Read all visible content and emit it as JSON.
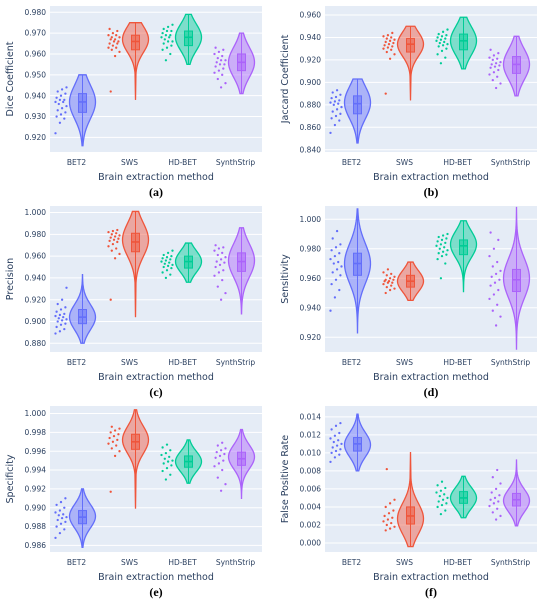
{
  "figure": {
    "colors": {
      "plot_bg": "#e5ecf6",
      "grid": "#ffffff",
      "text": "#2a3f5f"
    },
    "categories": [
      "BET2",
      "SWS",
      "HD-BET",
      "SynthStrip"
    ],
    "category_colors": {
      "BET2": "#636efa",
      "SWS": "#ef553b",
      "HD-BET": "#00cc96",
      "SynthStrip": "#ab63fa"
    }
  },
  "chart_data": [
    {
      "type": "violin",
      "panel_label": "(a)",
      "xlabel": "Brain extraction method",
      "ylabel": "Dice Coefficient",
      "ylim": [
        0.913,
        0.983
      ],
      "yticks": [
        0.92,
        0.93,
        0.94,
        0.95,
        0.96,
        0.97,
        0.98
      ],
      "tick_decimals": 3,
      "categories": [
        "BET2",
        "SWS",
        "HD-BET",
        "SynthStrip"
      ],
      "series": [
        {
          "name": "BET2",
          "min": 0.916,
          "q1": 0.932,
          "median": 0.937,
          "q3": 0.941,
          "max": 0.95,
          "mode": 0.937,
          "points": [
            0.922,
            0.927,
            0.929,
            0.93,
            0.931,
            0.932,
            0.933,
            0.934,
            0.935,
            0.936,
            0.937,
            0.937,
            0.938,
            0.938,
            0.939,
            0.94,
            0.941,
            0.942,
            0.943,
            0.944
          ]
        },
        {
          "name": "SWS",
          "min": 0.938,
          "q1": 0.962,
          "median": 0.966,
          "q3": 0.969,
          "max": 0.975,
          "mode": 0.967,
          "points": [
            0.942,
            0.959,
            0.961,
            0.962,
            0.963,
            0.963,
            0.964,
            0.965,
            0.965,
            0.966,
            0.966,
            0.967,
            0.967,
            0.968,
            0.968,
            0.969,
            0.969,
            0.97,
            0.971,
            0.972
          ]
        },
        {
          "name": "HD-BET",
          "min": 0.955,
          "q1": 0.964,
          "median": 0.968,
          "q3": 0.971,
          "max": 0.979,
          "mode": 0.968,
          "points": [
            0.957,
            0.96,
            0.962,
            0.963,
            0.964,
            0.965,
            0.966,
            0.966,
            0.967,
            0.968,
            0.968,
            0.969,
            0.969,
            0.97,
            0.971,
            0.971,
            0.972,
            0.973,
            0.974
          ]
        },
        {
          "name": "SynthStrip",
          "min": 0.941,
          "q1": 0.952,
          "median": 0.956,
          "q3": 0.96,
          "max": 0.97,
          "mode": 0.956,
          "points": [
            0.944,
            0.946,
            0.948,
            0.95,
            0.951,
            0.952,
            0.953,
            0.954,
            0.955,
            0.955,
            0.956,
            0.957,
            0.957,
            0.958,
            0.959,
            0.96,
            0.961,
            0.962,
            0.963
          ]
        }
      ]
    },
    {
      "type": "violin",
      "panel_label": "(b)",
      "xlabel": "Brain extraction method",
      "ylabel": "Jaccard Coefficient",
      "ylim": [
        0.838,
        0.968
      ],
      "yticks": [
        0.84,
        0.86,
        0.88,
        0.9,
        0.92,
        0.94,
        0.96
      ],
      "tick_decimals": 3,
      "categories": [
        "BET2",
        "SWS",
        "HD-BET",
        "SynthStrip"
      ],
      "series": [
        {
          "name": "BET2",
          "min": 0.846,
          "q1": 0.872,
          "median": 0.881,
          "q3": 0.888,
          "max": 0.903,
          "mode": 0.882,
          "points": [
            0.855,
            0.862,
            0.866,
            0.868,
            0.87,
            0.872,
            0.874,
            0.876,
            0.878,
            0.88,
            0.881,
            0.882,
            0.883,
            0.884,
            0.886,
            0.887,
            0.889,
            0.891,
            0.893
          ]
        },
        {
          "name": "SWS",
          "min": 0.884,
          "q1": 0.927,
          "median": 0.934,
          "q3": 0.939,
          "max": 0.95,
          "mode": 0.934,
          "points": [
            0.89,
            0.921,
            0.925,
            0.927,
            0.929,
            0.93,
            0.931,
            0.932,
            0.933,
            0.934,
            0.935,
            0.936,
            0.937,
            0.938,
            0.939,
            0.94,
            0.941,
            0.942,
            0.944
          ]
        },
        {
          "name": "HD-BET",
          "min": 0.912,
          "q1": 0.929,
          "median": 0.937,
          "q3": 0.943,
          "max": 0.958,
          "mode": 0.937,
          "points": [
            0.917,
            0.922,
            0.925,
            0.928,
            0.93,
            0.932,
            0.933,
            0.934,
            0.935,
            0.936,
            0.937,
            0.938,
            0.939,
            0.94,
            0.941,
            0.942,
            0.943,
            0.945,
            0.947
          ]
        },
        {
          "name": "SynthStrip",
          "min": 0.888,
          "q1": 0.908,
          "median": 0.916,
          "q3": 0.923,
          "max": 0.941,
          "mode": 0.916,
          "points": [
            0.895,
            0.899,
            0.902,
            0.905,
            0.907,
            0.909,
            0.911,
            0.913,
            0.914,
            0.915,
            0.916,
            0.917,
            0.918,
            0.92,
            0.921,
            0.922,
            0.924,
            0.926,
            0.929
          ]
        }
      ]
    },
    {
      "type": "violin",
      "panel_label": "(c)",
      "xlabel": "Brain extraction method",
      "ylabel": "Precision",
      "ylim": [
        0.872,
        1.006
      ],
      "yticks": [
        0.88,
        0.9,
        0.92,
        0.94,
        0.96,
        0.98,
        1.0
      ],
      "tick_decimals": 3,
      "categories": [
        "BET2",
        "SWS",
        "HD-BET",
        "SynthStrip"
      ],
      "series": [
        {
          "name": "BET2",
          "min": 0.88,
          "q1": 0.898,
          "median": 0.904,
          "q3": 0.911,
          "max": 0.943,
          "mode": 0.904,
          "points": [
            0.889,
            0.891,
            0.893,
            0.895,
            0.897,
            0.898,
            0.9,
            0.901,
            0.902,
            0.903,
            0.904,
            0.905,
            0.906,
            0.907,
            0.909,
            0.911,
            0.913,
            0.916,
            0.92,
            0.931
          ]
        },
        {
          "name": "SWS",
          "min": 0.904,
          "q1": 0.964,
          "median": 0.973,
          "q3": 0.981,
          "max": 1.001,
          "mode": 0.975,
          "points": [
            0.92,
            0.958,
            0.962,
            0.965,
            0.967,
            0.969,
            0.971,
            0.973,
            0.974,
            0.975,
            0.976,
            0.977,
            0.978,
            0.979,
            0.98,
            0.981,
            0.982,
            0.983,
            0.984
          ]
        },
        {
          "name": "HD-BET",
          "min": 0.936,
          "q1": 0.949,
          "median": 0.955,
          "q3": 0.96,
          "max": 0.972,
          "mode": 0.955,
          "points": [
            0.94,
            0.943,
            0.945,
            0.947,
            0.949,
            0.95,
            0.951,
            0.952,
            0.953,
            0.954,
            0.955,
            0.956,
            0.957,
            0.958,
            0.959,
            0.96,
            0.961,
            0.963,
            0.965
          ]
        },
        {
          "name": "SynthStrip",
          "min": 0.907,
          "q1": 0.946,
          "median": 0.955,
          "q3": 0.963,
          "max": 0.986,
          "mode": 0.956,
          "points": [
            0.92,
            0.926,
            0.932,
            0.938,
            0.942,
            0.945,
            0.947,
            0.95,
            0.952,
            0.954,
            0.955,
            0.957,
            0.959,
            0.961,
            0.963,
            0.965,
            0.967,
            0.968,
            0.97
          ]
        }
      ]
    },
    {
      "type": "violin",
      "panel_label": "(d)",
      "xlabel": "Brain extraction method",
      "ylabel": "Sensitivity",
      "ylim": [
        0.91,
        1.009
      ],
      "yticks": [
        0.92,
        0.94,
        0.96,
        0.98,
        1.0
      ],
      "tick_decimals": 3,
      "categories": [
        "BET2",
        "SWS",
        "HD-BET",
        "SynthStrip"
      ],
      "series": [
        {
          "name": "BET2",
          "min": 0.923,
          "q1": 0.962,
          "median": 0.97,
          "q3": 0.977,
          "max": 1.007,
          "mode": 0.97,
          "points": [
            0.938,
            0.947,
            0.952,
            0.956,
            0.959,
            0.962,
            0.964,
            0.966,
            0.968,
            0.97,
            0.971,
            0.973,
            0.975,
            0.977,
            0.979,
            0.981,
            0.983,
            0.987,
            0.992
          ]
        },
        {
          "name": "SWS",
          "min": 0.945,
          "q1": 0.954,
          "median": 0.958,
          "q3": 0.962,
          "max": 0.971,
          "mode": 0.958,
          "points": [
            0.95,
            0.952,
            0.953,
            0.954,
            0.955,
            0.956,
            0.957,
            0.957,
            0.958,
            0.958,
            0.959,
            0.959,
            0.96,
            0.961,
            0.962,
            0.963,
            0.964,
            0.966
          ]
        },
        {
          "name": "HD-BET",
          "min": 0.951,
          "q1": 0.976,
          "median": 0.982,
          "q3": 0.986,
          "max": 0.999,
          "mode": 0.983,
          "points": [
            0.96,
            0.97,
            0.973,
            0.975,
            0.976,
            0.977,
            0.978,
            0.979,
            0.98,
            0.981,
            0.982,
            0.983,
            0.984,
            0.985,
            0.986,
            0.987,
            0.988,
            0.989,
            0.99
          ]
        },
        {
          "name": "SynthStrip",
          "min": 0.912,
          "q1": 0.951,
          "median": 0.959,
          "q3": 0.966,
          "max": 1.008,
          "mode": 0.96,
          "points": [
            0.928,
            0.934,
            0.938,
            0.942,
            0.946,
            0.949,
            0.952,
            0.955,
            0.957,
            0.959,
            0.961,
            0.963,
            0.965,
            0.968,
            0.971,
            0.975,
            0.98,
            0.986,
            0.991
          ]
        }
      ]
    },
    {
      "type": "violin",
      "panel_label": "(e)",
      "xlabel": "Brain extraction method",
      "ylabel": "Specificity",
      "ylim": [
        0.9853,
        1.0008
      ],
      "yticks": [
        0.986,
        0.988,
        0.99,
        0.992,
        0.994,
        0.996,
        0.998,
        1.0
      ],
      "tick_decimals": 3,
      "categories": [
        "BET2",
        "SWS",
        "HD-BET",
        "SynthStrip"
      ],
      "series": [
        {
          "name": "BET2",
          "min": 0.9858,
          "q1": 0.9883,
          "median": 0.989,
          "q3": 0.9897,
          "max": 0.992,
          "mode": 0.9891,
          "points": [
            0.9868,
            0.9873,
            0.9877,
            0.988,
            0.9883,
            0.9885,
            0.9887,
            0.9889,
            0.989,
            0.9892,
            0.9893,
            0.9895,
            0.9897,
            0.99,
            0.9903,
            0.9906,
            0.991
          ]
        },
        {
          "name": "SWS",
          "min": 0.9899,
          "q1": 0.9962,
          "median": 0.997,
          "q3": 0.9978,
          "max": 1.0004,
          "mode": 0.9972,
          "points": [
            0.9917,
            0.9955,
            0.996,
            0.9963,
            0.9966,
            0.9968,
            0.997,
            0.9972,
            0.9974,
            0.9976,
            0.9978,
            0.998,
            0.9982,
            0.9984,
            0.9986
          ]
        },
        {
          "name": "HD-BET",
          "min": 0.9926,
          "q1": 0.9943,
          "median": 0.9949,
          "q3": 0.9955,
          "max": 0.9972,
          "mode": 0.9949,
          "points": [
            0.993,
            0.9935,
            0.9939,
            0.9942,
            0.9945,
            0.9947,
            0.9949,
            0.995,
            0.9952,
            0.9954,
            0.9956,
            0.9958,
            0.9961,
            0.9964,
            0.9967
          ]
        },
        {
          "name": "SynthStrip",
          "min": 0.991,
          "q1": 0.9945,
          "median": 0.9952,
          "q3": 0.9959,
          "max": 0.9983,
          "mode": 0.9954,
          "points": [
            0.9918,
            0.9925,
            0.9932,
            0.994,
            0.9944,
            0.9947,
            0.995,
            0.9953,
            0.9955,
            0.9957,
            0.9959,
            0.9961,
            0.9963,
            0.9966,
            0.9969
          ]
        }
      ]
    },
    {
      "type": "violin",
      "panel_label": "(f)",
      "xlabel": "Brain extraction method",
      "ylabel": "False Positive Rate",
      "ylim": [
        -0.001,
        0.0152
      ],
      "yticks": [
        0.0,
        0.002,
        0.004,
        0.006,
        0.008,
        0.01,
        0.012,
        0.014
      ],
      "tick_decimals": 3,
      "categories": [
        "BET2",
        "SWS",
        "HD-BET",
        "SynthStrip"
      ],
      "series": [
        {
          "name": "BET2",
          "min": 0.008,
          "q1": 0.0102,
          "median": 0.011,
          "q3": 0.0117,
          "max": 0.0143,
          "mode": 0.0109,
          "points": [
            0.009,
            0.0095,
            0.0098,
            0.01,
            0.0102,
            0.0104,
            0.0106,
            0.0108,
            0.011,
            0.0112,
            0.0114,
            0.0116,
            0.0119,
            0.0122,
            0.0126,
            0.013,
            0.0133
          ]
        },
        {
          "name": "SWS",
          "min": -0.0004,
          "q1": 0.0021,
          "median": 0.003,
          "q3": 0.004,
          "max": 0.0101,
          "mode": 0.0027,
          "points": [
            0.0014,
            0.0016,
            0.0018,
            0.002,
            0.0022,
            0.0024,
            0.0026,
            0.0028,
            0.003,
            0.0033,
            0.0036,
            0.004,
            0.0044,
            0.0048,
            0.0082
          ]
        },
        {
          "name": "HD-BET",
          "min": 0.0028,
          "q1": 0.0044,
          "median": 0.005,
          "q3": 0.0057,
          "max": 0.0074,
          "mode": 0.005,
          "points": [
            0.0032,
            0.0036,
            0.004,
            0.0042,
            0.0044,
            0.0046,
            0.0048,
            0.005,
            0.0052,
            0.0054,
            0.0056,
            0.0058,
            0.0061,
            0.0064,
            0.0068
          ]
        },
        {
          "name": "SynthStrip",
          "min": 0.0019,
          "q1": 0.0041,
          "median": 0.0048,
          "q3": 0.0055,
          "max": 0.0092,
          "mode": 0.0047,
          "points": [
            0.0026,
            0.003,
            0.0034,
            0.0038,
            0.0041,
            0.0044,
            0.0046,
            0.0048,
            0.005,
            0.0053,
            0.0056,
            0.006,
            0.0066,
            0.0073,
            0.0081
          ]
        }
      ]
    }
  ]
}
